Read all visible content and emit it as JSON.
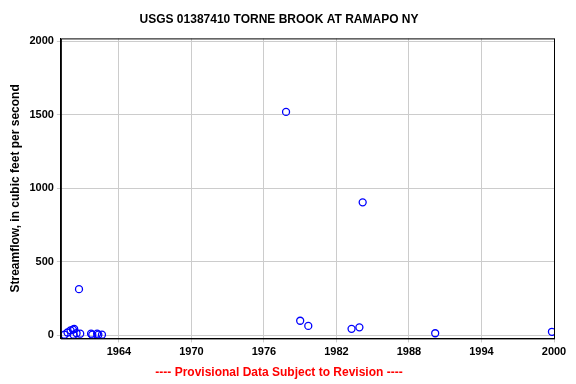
{
  "chart_data": {
    "type": "scatter",
    "title": "USGS 01387410 TORNE BROOK AT RAMAPO NY",
    "y_label": "Streamflow, in cubic feet per second",
    "annotation": "---- Provisional Data Subject to Revision ----",
    "x": [
      1959.5,
      1959.75,
      1960.0,
      1960.2,
      1960.3,
      1960.5,
      1960.25,
      1960.7,
      1960.8,
      1961.7,
      1961.8,
      1962.2,
      1962.3,
      1962.6,
      1977.83,
      1979.0,
      1979.67,
      1983.25,
      1983.9,
      1984.17,
      1990.17,
      1999.83
    ],
    "values": [
      5,
      20,
      35,
      40,
      45,
      15,
      5,
      315,
      12,
      12,
      5,
      12,
      5,
      5,
      1520,
      100,
      65,
      45,
      55,
      905,
      15,
      25
    ],
    "color": "#0000ff",
    "marker": "circle",
    "xlim": [
      1959.2,
      2000
    ],
    "xticks": [
      1964,
      1970,
      1976,
      1982,
      1988,
      1994,
      2000
    ],
    "ylim": [
      -20,
      2020
    ],
    "yticks": [
      0,
      500,
      1000,
      1500,
      2000
    ],
    "grid": true
  }
}
